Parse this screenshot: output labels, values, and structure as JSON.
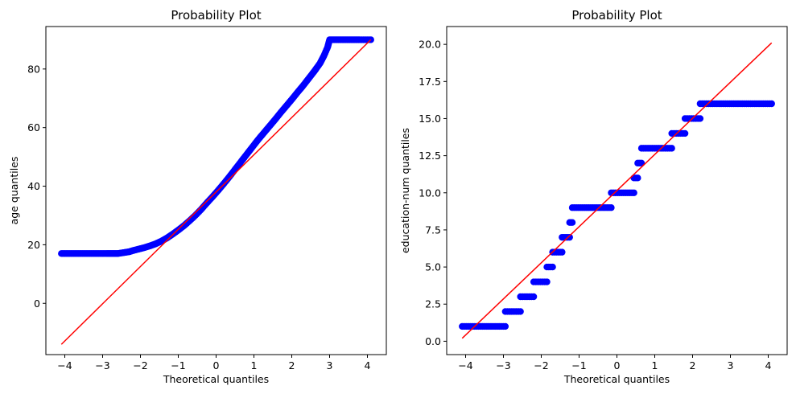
{
  "chart_data": [
    {
      "type": "scatter",
      "title": "Probability Plot",
      "xlabel": "Theoretical quantiles",
      "ylabel": "age quantiles",
      "xlim": [
        -4.5,
        4.5
      ],
      "ylim": [
        -17.5,
        94.5
      ],
      "xticks": [
        -4,
        -3,
        -2,
        -1,
        0,
        1,
        2,
        3,
        4
      ],
      "xtick_labels": [
        "−4",
        "−3",
        "−2",
        "−1",
        "0",
        "1",
        "2",
        "3",
        "4"
      ],
      "yticks": [
        0,
        20,
        40,
        60,
        80
      ],
      "ytick_labels": [
        "0",
        "20",
        "40",
        "60",
        "80"
      ],
      "grid": false,
      "marker_color": "#0000ff",
      "line_color": "#ff0000",
      "series": [
        {
          "kind": "points",
          "points": [
            [
              -4.09,
              17
            ],
            [
              -3.9,
              17
            ],
            [
              -3.7,
              17
            ],
            [
              -3.5,
              17
            ],
            [
              -3.3,
              17
            ],
            [
              -3.1,
              17
            ],
            [
              -2.9,
              17
            ],
            [
              -2.75,
              17
            ],
            [
              -2.6,
              17
            ],
            [
              -2.45,
              17.3
            ],
            [
              -2.3,
              17.6
            ],
            [
              -2.2,
              18
            ],
            [
              -2.05,
              18.5
            ],
            [
              -1.9,
              19
            ],
            [
              -1.75,
              19.6
            ],
            [
              -1.6,
              20.3
            ],
            [
              -1.45,
              21.2
            ],
            [
              -1.3,
              22.3
            ],
            [
              -1.15,
              23.6
            ],
            [
              -1.0,
              25
            ],
            [
              -0.85,
              26.5
            ],
            [
              -0.7,
              28.2
            ],
            [
              -0.55,
              30
            ],
            [
              -0.4,
              32
            ],
            [
              -0.25,
              34.2
            ],
            [
              -0.1,
              36.3
            ],
            [
              0.05,
              38.5
            ],
            [
              0.2,
              40.8
            ],
            [
              0.35,
              43.2
            ],
            [
              0.5,
              45.7
            ],
            [
              0.65,
              48.2
            ],
            [
              0.8,
              50.7
            ],
            [
              0.95,
              53.2
            ],
            [
              1.1,
              55.7
            ],
            [
              1.25,
              58
            ],
            [
              1.4,
              60.3
            ],
            [
              1.55,
              62.6
            ],
            [
              1.7,
              65
            ],
            [
              1.85,
              67.3
            ],
            [
              2.0,
              69.6
            ],
            [
              2.15,
              72
            ],
            [
              2.3,
              74.3
            ],
            [
              2.45,
              76.8
            ],
            [
              2.6,
              79.3
            ],
            [
              2.75,
              82
            ],
            [
              2.85,
              84.5
            ],
            [
              2.95,
              87.5
            ],
            [
              3.0,
              90
            ],
            [
              3.2,
              90
            ],
            [
              3.4,
              90
            ],
            [
              3.6,
              90
            ],
            [
              3.8,
              90
            ],
            [
              4.09,
              90
            ]
          ]
        },
        {
          "kind": "line",
          "points": [
            [
              -4.09,
              -14
            ],
            [
              4.09,
              90
            ]
          ]
        }
      ]
    },
    {
      "type": "scatter",
      "title": "Probability Plot",
      "xlabel": "Theoretical quantiles",
      "ylabel": "education-num quantiles",
      "xlim": [
        -4.5,
        4.5
      ],
      "ylim": [
        -0.9,
        21.2
      ],
      "xticks": [
        -4,
        -3,
        -2,
        -1,
        0,
        1,
        2,
        3,
        4
      ],
      "xtick_labels": [
        "−4",
        "−3",
        "−2",
        "−1",
        "0",
        "1",
        "2",
        "3",
        "4"
      ],
      "yticks": [
        0.0,
        2.5,
        5.0,
        7.5,
        10.0,
        12.5,
        15.0,
        17.5,
        20.0
      ],
      "ytick_labels": [
        "0.0",
        "2.5",
        "5.0",
        "7.5",
        "10.0",
        "12.5",
        "15.0",
        "17.5",
        "20.0"
      ],
      "grid": false,
      "marker_color": "#0000ff",
      "line_color": "#ff0000",
      "series": [
        {
          "kind": "steps",
          "steps": [
            {
              "y": 1,
              "x0": -4.09,
              "x1": -2.95
            },
            {
              "y": 2,
              "x0": -2.95,
              "x1": -2.55
            },
            {
              "y": 3,
              "x0": -2.55,
              "x1": -2.2
            },
            {
              "y": 4,
              "x0": -2.2,
              "x1": -1.85
            },
            {
              "y": 5,
              "x0": -1.85,
              "x1": -1.7
            },
            {
              "y": 6,
              "x0": -1.7,
              "x1": -1.45
            },
            {
              "y": 7,
              "x0": -1.45,
              "x1": -1.25
            },
            {
              "y": 8,
              "x0": -1.25,
              "x1": -1.18
            },
            {
              "y": 9,
              "x0": -1.18,
              "x1": -0.15
            },
            {
              "y": 10,
              "x0": -0.15,
              "x1": 0.45
            },
            {
              "y": 11,
              "x0": 0.45,
              "x1": 0.55
            },
            {
              "y": 12,
              "x0": 0.55,
              "x1": 0.65
            },
            {
              "y": 13,
              "x0": 0.65,
              "x1": 1.45
            },
            {
              "y": 14,
              "x0": 1.45,
              "x1": 1.8
            },
            {
              "y": 15,
              "x0": 1.8,
              "x1": 2.2
            },
            {
              "y": 16,
              "x0": 2.2,
              "x1": 4.09
            }
          ]
        },
        {
          "kind": "line",
          "points": [
            [
              -4.09,
              0.2
            ],
            [
              4.09,
              20.1
            ]
          ]
        }
      ]
    }
  ]
}
